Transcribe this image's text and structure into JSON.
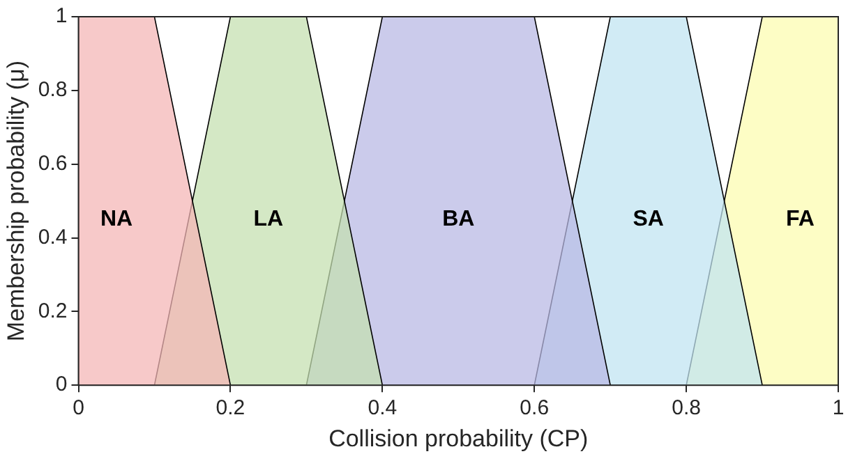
{
  "chart_data": {
    "type": "area",
    "xlabel": "Collision probability (CP)",
    "ylabel": "Membership probability (μ)",
    "xlim": [
      0,
      1
    ],
    "ylim": [
      0,
      1
    ],
    "xticks": [
      0,
      0.2,
      0.4,
      0.6,
      0.8,
      1
    ],
    "yticks": [
      0,
      0.2,
      0.4,
      0.6,
      0.8,
      1
    ],
    "grid": false,
    "series": [
      {
        "name": "NA",
        "color": "#f4b6b6",
        "x": [
          0,
          0.1,
          0.2
        ],
        "values": [
          1,
          1,
          0
        ]
      },
      {
        "name": "LA",
        "color": "#c4e0b0",
        "x": [
          0.1,
          0.2,
          0.3,
          0.4
        ],
        "values": [
          0,
          1,
          1,
          0
        ]
      },
      {
        "name": "BA",
        "color": "#b8b8e4",
        "x": [
          0.3,
          0.4,
          0.6,
          0.7
        ],
        "values": [
          0,
          1,
          1,
          0
        ]
      },
      {
        "name": "SA",
        "color": "#c0e4f2",
        "x": [
          0.6,
          0.7,
          0.8,
          0.9
        ],
        "values": [
          0,
          1,
          1,
          0
        ]
      },
      {
        "name": "FA",
        "color": "#fcfcb0",
        "x": [
          0.8,
          0.9,
          1
        ],
        "values": [
          0,
          1,
          1
        ]
      }
    ]
  }
}
